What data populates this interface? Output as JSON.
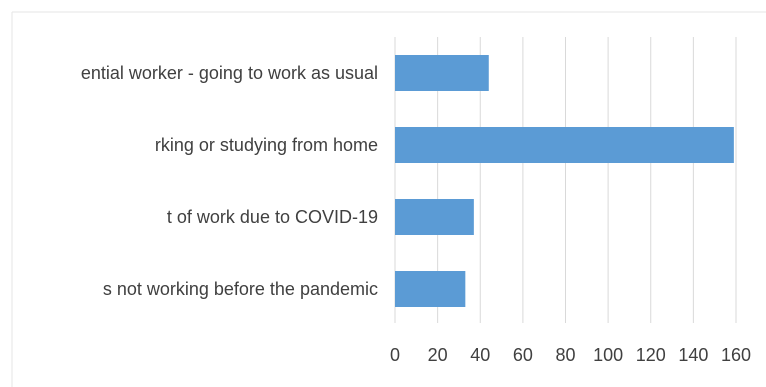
{
  "chart_data": {
    "type": "bar",
    "orientation": "horizontal",
    "categories": [
      "ential worker - going to work as usual",
      "rking or studying from home",
      "t of work due to COVID-19",
      "s not working before the pandemic"
    ],
    "values": [
      44,
      159,
      37,
      33
    ],
    "xlim": [
      0,
      160
    ],
    "x_ticks": [
      "0",
      "20",
      "40",
      "60",
      "80",
      "100",
      "120",
      "140",
      "160"
    ],
    "grid": "vertical",
    "legend": "none",
    "colors": {
      "bar": "#5b9bd5",
      "grid": "#d9d9d9",
      "text": "#404040"
    }
  }
}
